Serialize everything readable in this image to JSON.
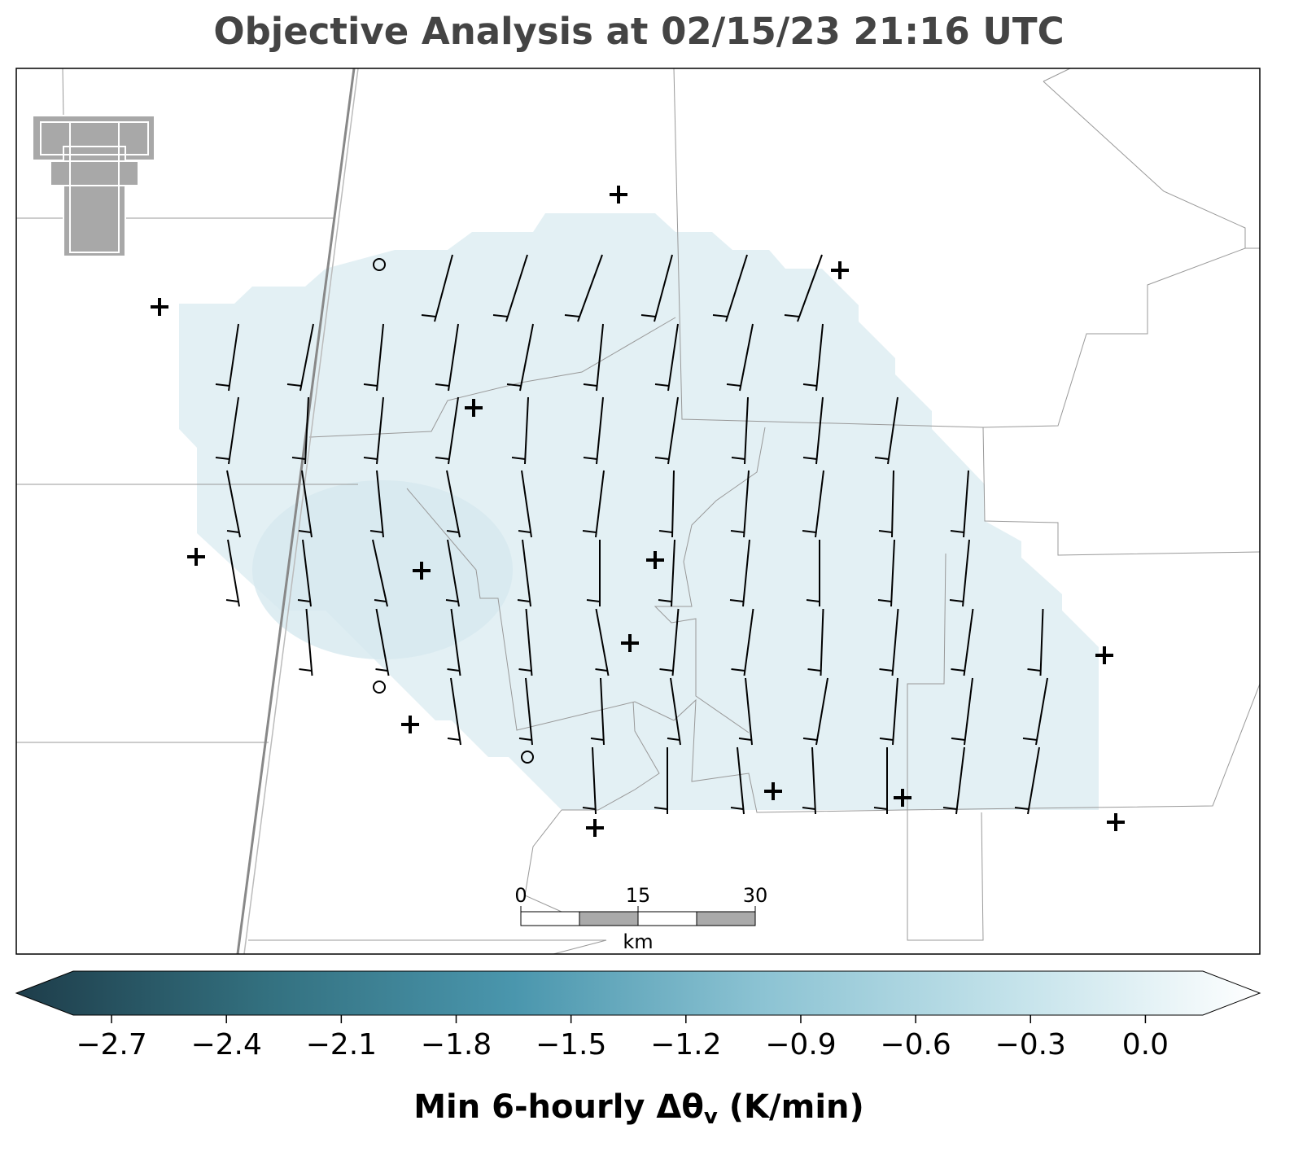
{
  "title": "Objective Analysis at 02/15/23 21:16 UTC",
  "scale_bar": {
    "ticks": [
      0,
      15,
      30
    ],
    "unit": "km"
  },
  "colorbar": {
    "clim": [
      -2.8,
      0.15
    ],
    "colors": [
      "#1e3d4a",
      "#33707f",
      "#4a96ad",
      "#8cc3d3",
      "#c3e2ea",
      "#ffffff"
    ],
    "ticks": [
      {
        "value": -2.7,
        "label": "−2.7"
      },
      {
        "value": -2.4,
        "label": "−2.4"
      },
      {
        "value": -2.1,
        "label": "−2.1"
      },
      {
        "value": -1.8,
        "label": "−1.8"
      },
      {
        "value": -1.5,
        "label": "−1.5"
      },
      {
        "value": -1.2,
        "label": "−1.2"
      },
      {
        "value": -0.9,
        "label": "−0.9"
      },
      {
        "value": -0.6,
        "label": "−0.6"
      },
      {
        "value": -0.3,
        "label": "−0.3"
      },
      {
        "value": 0.0,
        "label": "0.0"
      }
    ],
    "label": {
      "main": "Min 6-hourly Δθ",
      "sub": "v",
      "unit": " (K/min)"
    }
  }
}
